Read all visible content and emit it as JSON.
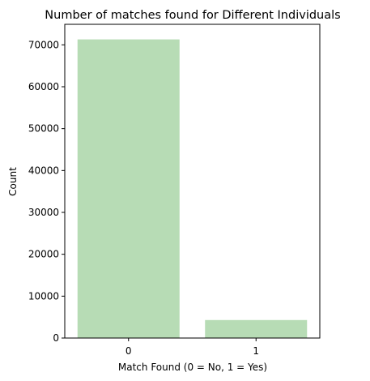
{
  "chart_data": {
    "type": "bar",
    "title": "Number of matches found for Different Individuals",
    "xlabel": "Match Found (0 = No, 1 = Yes)",
    "ylabel": "Count",
    "categories": [
      "0",
      "1"
    ],
    "values": [
      71300,
      4300
    ],
    "ylim": [
      0,
      74900
    ],
    "yticks": [
      0,
      10000,
      20000,
      30000,
      40000,
      50000,
      60000,
      70000
    ],
    "grid": false,
    "bar_color": "#b7dcb5"
  }
}
